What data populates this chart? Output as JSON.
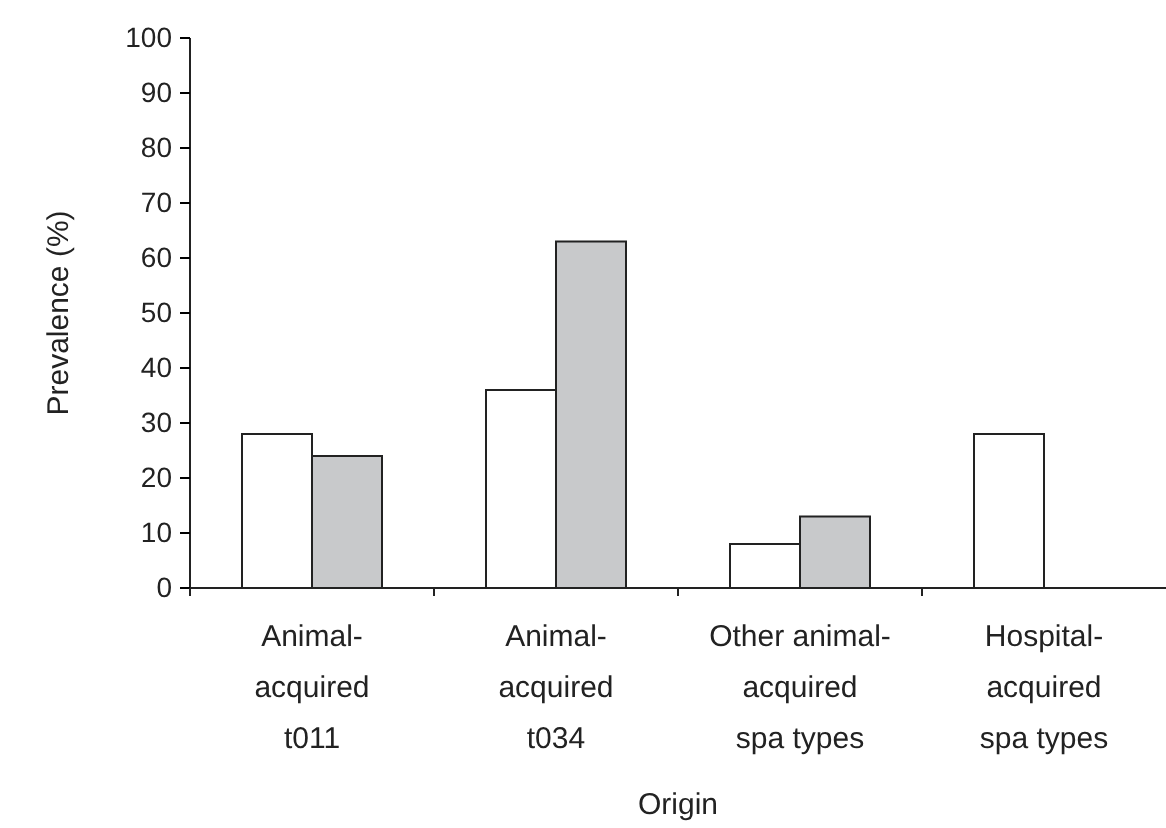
{
  "chart_data": {
    "type": "bar",
    "xlabel": "Origin",
    "ylabel": "Prevalence (%)",
    "categories": [
      "Animal-acquired t011",
      "Animal-acquired t034",
      "Other animal-acquired spa types",
      "Hospital-acquired spa types"
    ],
    "series": [
      {
        "color": "#ffffff",
        "values": [
          28,
          36,
          8,
          28
        ]
      },
      {
        "color": "#c8c9cb",
        "values": [
          24,
          63,
          13,
          0
        ]
      }
    ],
    "ylim": [
      0,
      100
    ],
    "yticks": [
      0,
      10,
      20,
      30,
      40,
      50,
      60,
      70,
      80,
      90,
      100
    ],
    "grid": false,
    "legend": false
  }
}
